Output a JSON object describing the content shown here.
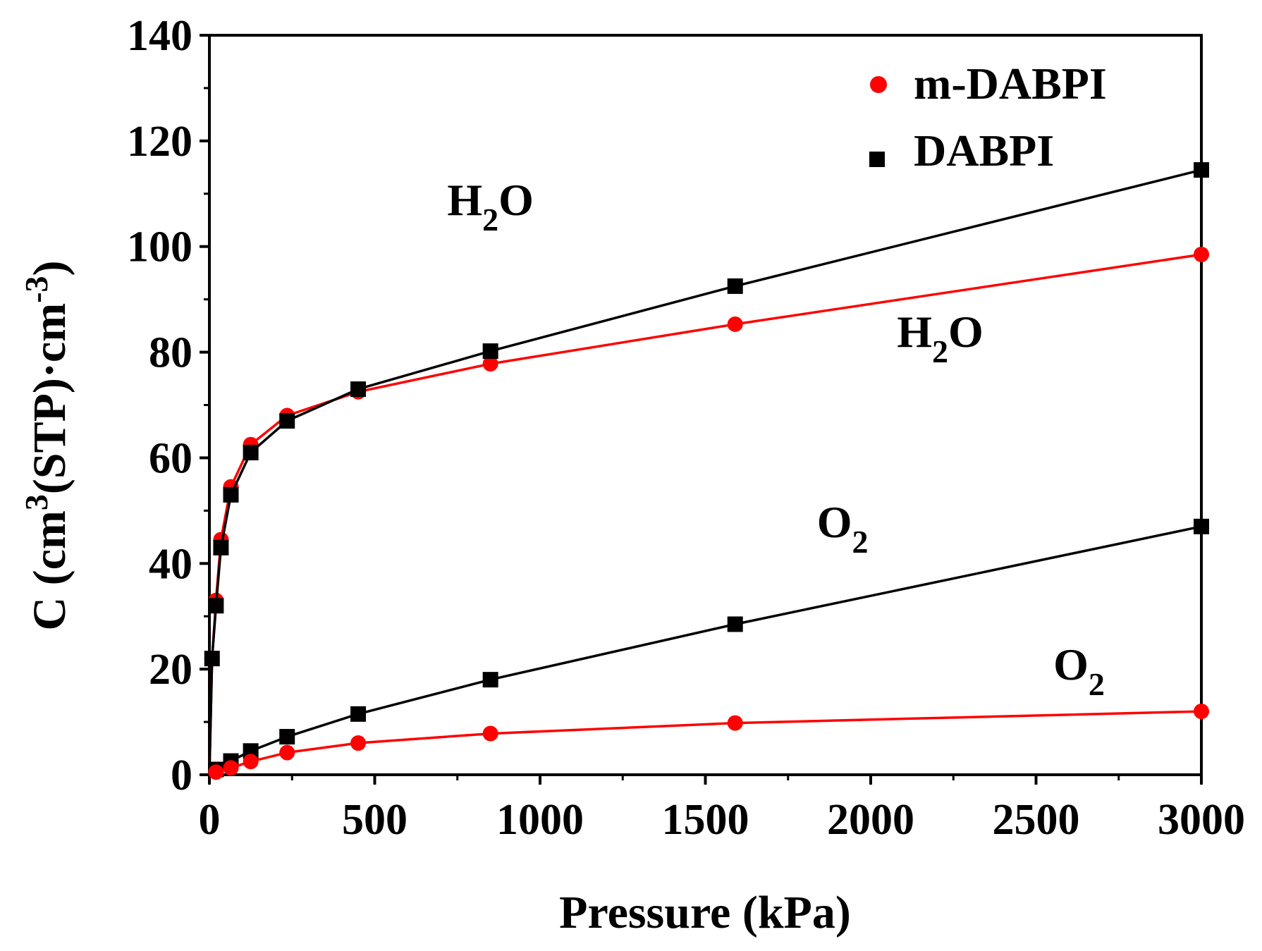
{
  "chart_data": {
    "type": "line",
    "title": "",
    "xlabel": "Pressure (kPa)",
    "ylabel": {
      "prefix": "C (cm",
      "sup1": "3",
      "mid": "(STP)·cm",
      "sup2": "-3",
      "suffix": ")"
    },
    "xlim": [
      0,
      3000
    ],
    "ylim": [
      0,
      140
    ],
    "x_ticks": [
      0,
      500,
      1000,
      1500,
      2000,
      2500,
      3000
    ],
    "x_tick_labels": [
      "0",
      "500",
      "1000",
      "1500",
      "2000",
      "2500",
      "3000"
    ],
    "y_ticks": [
      0,
      20,
      40,
      60,
      80,
      100,
      120,
      140
    ],
    "y_tick_labels": [
      "0",
      "20",
      "40",
      "60",
      "80",
      "100",
      "120",
      "140"
    ],
    "grid": false,
    "legend_position": "top-right",
    "series": [
      {
        "name": "m-DABPI",
        "gas": "H2O",
        "color": "#ff0000",
        "marker": "circle",
        "x": [
          8,
          20,
          35,
          65,
          125,
          235,
          450,
          850,
          1590,
          3000
        ],
        "y": [
          22,
          33,
          44.5,
          54.5,
          62.5,
          68,
          72.5,
          77.8,
          85.3,
          98.5
        ]
      },
      {
        "name": "DABPI",
        "gas": "H2O",
        "color": "#000000",
        "marker": "square",
        "x": [
          8,
          20,
          35,
          65,
          125,
          235,
          450,
          850,
          1590,
          3000
        ],
        "y": [
          22,
          32,
          43,
          53,
          61,
          67,
          73,
          80.2,
          92.5,
          114.5
        ]
      },
      {
        "name": "DABPI",
        "gas": "O2",
        "color": "#000000",
        "marker": "square",
        "x": [
          20,
          65,
          125,
          235,
          450,
          850,
          1590,
          3000
        ],
        "y": [
          1,
          2.6,
          4.5,
          7.2,
          11.5,
          18,
          28.5,
          47
        ]
      },
      {
        "name": "m-DABPI",
        "gas": "O2",
        "color": "#ff0000",
        "marker": "circle",
        "x": [
          20,
          65,
          125,
          235,
          450,
          850,
          1590,
          3000
        ],
        "y": [
          0.5,
          1.3,
          2.5,
          4.2,
          6,
          7.8,
          9.8,
          12
        ]
      }
    ],
    "legend": [
      {
        "label": "m-DABPI",
        "marker": "circle",
        "color": "#ff0000"
      },
      {
        "label": "DABPI",
        "marker": "square",
        "color": "#000000"
      }
    ],
    "annotations": [
      {
        "base": "H",
        "sub": "2",
        "rest": "O",
        "x": 850,
        "y": 106
      },
      {
        "base": "H",
        "sub": "2",
        "rest": "O",
        "x": 2210,
        "y": 81
      },
      {
        "base": "O",
        "sub": "2",
        "rest": "",
        "x": 1915,
        "y": 45
      },
      {
        "base": "O",
        "sub": "2",
        "rest": "",
        "x": 2630,
        "y": 18
      }
    ]
  }
}
